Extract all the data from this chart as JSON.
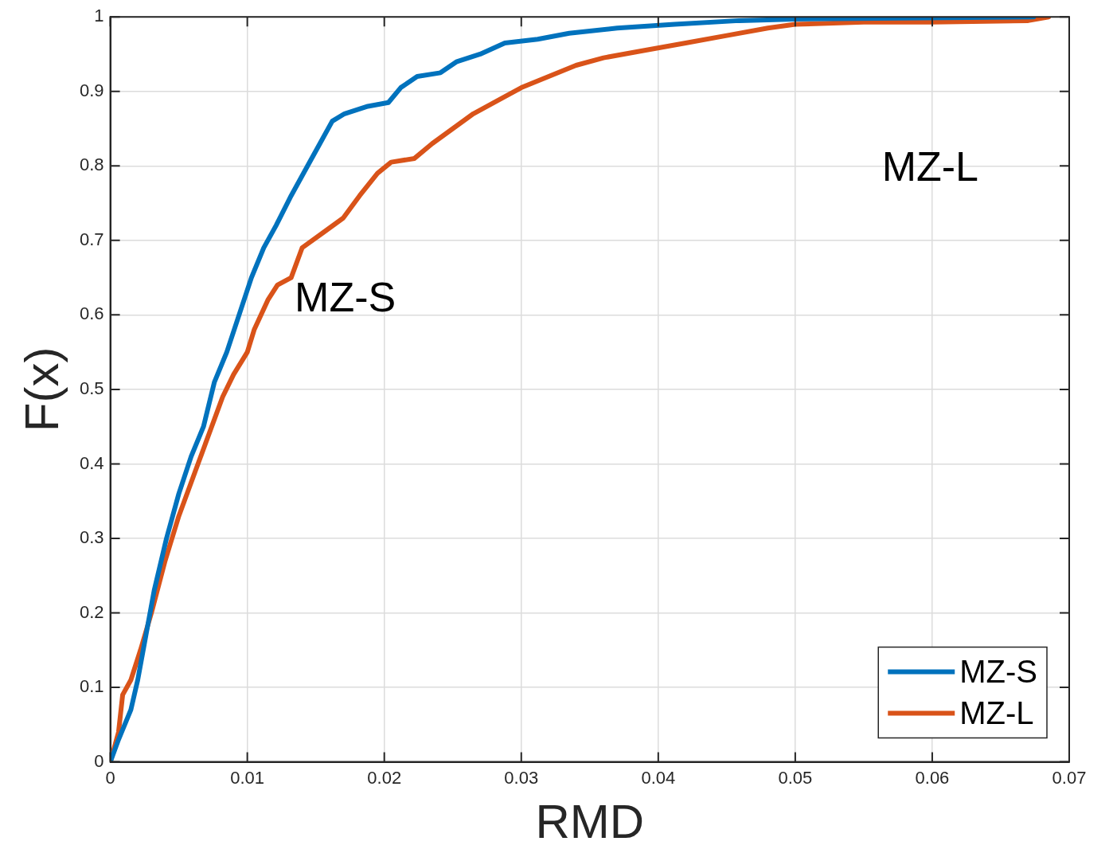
{
  "chart_data": {
    "type": "line",
    "xlabel": "RMD",
    "ylabel": "F(x)",
    "xlim": [
      0,
      0.07
    ],
    "xticks": [
      0,
      0.01,
      0.02,
      0.03,
      0.04,
      0.05,
      0.06,
      0.07
    ],
    "ylim": [
      0,
      1
    ],
    "yticks": [
      0,
      0.1,
      0.2,
      0.3,
      0.4,
      0.5,
      0.6,
      0.7,
      0.8,
      0.9,
      1
    ],
    "grid": true,
    "legend": "bottom right",
    "marker": "none",
    "line_style": "solid",
    "annotations": [
      "MZ-S",
      "MZ-L"
    ],
    "series": [
      {
        "name": "MZ-S",
        "color": "#0072bd",
        "x": [
          0,
          0.0006,
          0.0015,
          0.002,
          0.0026,
          0.0032,
          0.0041,
          0.005,
          0.0059,
          0.0068,
          0.0076,
          0.0085,
          0.0094,
          0.0103,
          0.0112,
          0.0121,
          0.0132,
          0.0144,
          0.0153,
          0.0162,
          0.0171,
          0.0188,
          0.0203,
          0.0212,
          0.0224,
          0.0241,
          0.0253,
          0.027,
          0.0288,
          0.0312,
          0.0335,
          0.037,
          0.0412,
          0.0459,
          0.05,
          0.0559,
          0.0674
        ],
        "values": [
          0,
          0.03,
          0.07,
          0.11,
          0.17,
          0.23,
          0.3,
          0.36,
          0.41,
          0.45,
          0.51,
          0.55,
          0.6,
          0.65,
          0.69,
          0.72,
          0.76,
          0.8,
          0.83,
          0.86,
          0.87,
          0.88,
          0.885,
          0.905,
          0.92,
          0.925,
          0.94,
          0.95,
          0.965,
          0.97,
          0.978,
          0.985,
          0.99,
          0.995,
          0.997,
          0.998,
          1
        ]
      },
      {
        "name": "MZ-L",
        "color": "#d95319",
        "x": [
          0,
          0.0006,
          0.0009,
          0.0015,
          0.0022,
          0.003,
          0.004,
          0.005,
          0.0062,
          0.0072,
          0.0082,
          0.009,
          0.01,
          0.0105,
          0.0115,
          0.0122,
          0.0132,
          0.014,
          0.0155,
          0.017,
          0.0182,
          0.0195,
          0.0205,
          0.0222,
          0.0235,
          0.025,
          0.0265,
          0.0285,
          0.03,
          0.032,
          0.034,
          0.036,
          0.039,
          0.042,
          0.045,
          0.048,
          0.05,
          0.055,
          0.06,
          0.067,
          0.0685
        ],
        "values": [
          0,
          0.04,
          0.09,
          0.11,
          0.15,
          0.2,
          0.27,
          0.33,
          0.39,
          0.44,
          0.49,
          0.52,
          0.55,
          0.58,
          0.62,
          0.64,
          0.65,
          0.69,
          0.71,
          0.73,
          0.76,
          0.79,
          0.805,
          0.81,
          0.83,
          0.85,
          0.87,
          0.89,
          0.905,
          0.92,
          0.935,
          0.945,
          0.955,
          0.965,
          0.975,
          0.985,
          0.99,
          0.993,
          0.993,
          0.995,
          1
        ]
      }
    ]
  }
}
